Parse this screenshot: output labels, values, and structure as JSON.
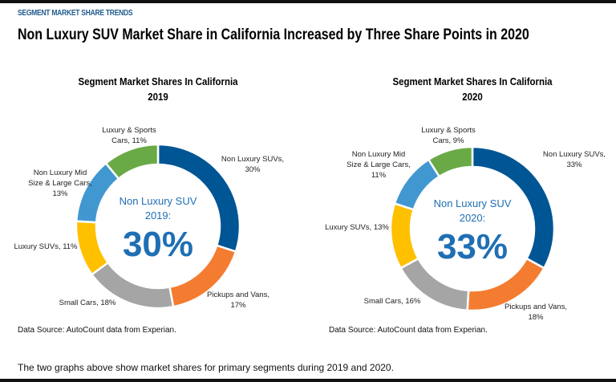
{
  "kicker": "SEGMENT MARKET SHARE TRENDS",
  "title": "Non Luxury SUV Market Share in California Increased by Three Share Points in 2020",
  "footer": "The two graphs above show market shares for primary segments during  2019 and 2020.",
  "colors": {
    "Non Luxury SUVs": "#005595",
    "Pickups and Vans": "#f47c30",
    "Small Cars": "#a5a5a5",
    "Luxury SUVs": "#ffc000",
    "Non Luxury Mid Size & Large Cars": "#4198d1",
    "Luxury & Sports Cars": "#6aaa46",
    "center_text": "#1f6fb4"
  },
  "chart_data": [
    {
      "type": "pie",
      "donut": true,
      "title": "Segment Market Shares In California",
      "subtitle": "2019",
      "categories": [
        "Non Luxury SUVs",
        "Pickups and Vans",
        "Small Cars",
        "Luxury SUVs",
        "Non Luxury Mid Size & Large Cars",
        "Luxury & Sports Cars"
      ],
      "values": [
        30,
        17,
        18,
        11,
        13,
        11
      ],
      "labels": [
        [
          "Non Luxury SUVs,",
          "30%"
        ],
        [
          "Pickups and Vans,",
          "17%"
        ],
        [
          "Small Cars, 18%"
        ],
        [
          "Luxury SUVs, 11%"
        ],
        [
          "Non Luxury Mid",
          "Size & Large Cars,",
          "13%"
        ],
        [
          "Luxury & Sports",
          "Cars, 11%"
        ]
      ],
      "center": {
        "line1": "Non Luxury SUV",
        "line2": "2019:",
        "value": "30%"
      },
      "source": "Data Source: AutoCount data from Experian."
    },
    {
      "type": "pie",
      "donut": true,
      "title": "Segment Market Shares In California",
      "subtitle": "2020",
      "categories": [
        "Non Luxury SUVs",
        "Pickups and Vans",
        "Small Cars",
        "Luxury SUVs",
        "Non Luxury Mid Size & Large Cars",
        "Luxury & Sports Cars"
      ],
      "values": [
        33,
        18,
        16,
        13,
        11,
        9
      ],
      "labels": [
        [
          "Non Luxury SUVs,",
          "33%"
        ],
        [
          "Pickups and Vans,",
          "18%"
        ],
        [
          "Small Cars, 16%"
        ],
        [
          "Luxury SUVs, 13%"
        ],
        [
          "Non Luxury Mid",
          "Size & Large Cars,",
          "11%"
        ],
        [
          "Luxury & Sports",
          "Cars, 9%"
        ]
      ],
      "center": {
        "line1": "Non Luxury SUV",
        "line2": "2020:",
        "value": "33%"
      },
      "source": "Data Source: AutoCount data from Experian."
    }
  ]
}
